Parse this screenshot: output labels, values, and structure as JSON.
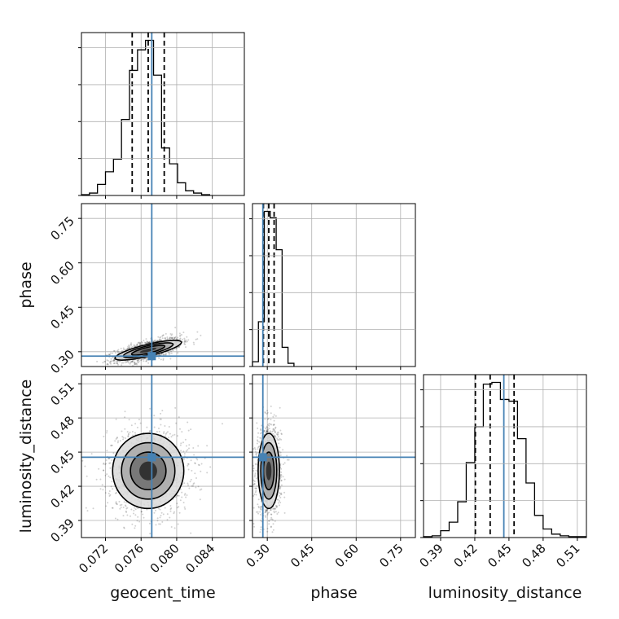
{
  "chart_data": {
    "type": "corner",
    "grid": true,
    "parameters": [
      {
        "name": "geocent_time",
        "label": "geocent_time",
        "truth": 0.0772,
        "range": [
          0.0693,
          0.0876
        ],
        "ticks": [
          0.072,
          0.076,
          0.08,
          0.084
        ],
        "tick_labels": [
          "0.072",
          "0.076",
          "0.080",
          "0.084"
        ],
        "quantiles": [
          0.075,
          0.0768,
          0.0786
        ]
      },
      {
        "name": "phase",
        "label": "phase",
        "truth": 0.285,
        "range": [
          0.25,
          0.8
        ],
        "ticks": [
          0.3,
          0.45,
          0.6,
          0.75
        ],
        "tick_labels": [
          "0.30",
          "0.45",
          "0.60",
          "0.75"
        ],
        "quantiles": [
          0.287,
          0.305,
          0.323
        ]
      },
      {
        "name": "luminosity_distance",
        "label": "luminosity_distance",
        "truth": 0.4455,
        "range": [
          0.375,
          0.518
        ],
        "ticks": [
          0.39,
          0.42,
          0.45,
          0.48,
          0.51
        ],
        "tick_labels": [
          "0.39",
          "0.42",
          "0.45",
          "0.48",
          "0.51"
        ],
        "quantiles": [
          0.4205,
          0.4335,
          0.4545
        ]
      }
    ],
    "histograms": [
      {
        "param": "geocent_time",
        "bin_edges": [
          0.0693,
          0.0702,
          0.0711,
          0.072,
          0.0729,
          0.0738,
          0.0747,
          0.0756,
          0.0765,
          0.0774,
          0.0783,
          0.0792,
          0.0801,
          0.081,
          0.0819,
          0.0828,
          0.0837
        ],
        "counts": [
          0.5,
          1.5,
          7,
          15,
          23,
          48,
          79,
          92,
          98,
          76,
          30,
          20,
          8,
          3,
          1.5,
          0.5
        ]
      },
      {
        "param": "phase",
        "bin_edges": [
          0.25,
          0.27,
          0.29,
          0.31,
          0.33,
          0.35,
          0.37,
          0.39
        ],
        "counts": [
          3,
          28,
          97,
          93,
          73,
          12,
          2
        ]
      },
      {
        "param": "luminosity_distance",
        "bin_edges": [
          0.375,
          0.3825,
          0.39,
          0.3975,
          0.405,
          0.4125,
          0.42,
          0.4275,
          0.435,
          0.4425,
          0.45,
          0.4575,
          0.465,
          0.4725,
          0.48,
          0.4875,
          0.495,
          0.5025,
          0.51,
          0.5175
        ],
        "counts": [
          0.5,
          1,
          4,
          9,
          21,
          44,
          65,
          90,
          91,
          81,
          80,
          58,
          32,
          13,
          5,
          2,
          1,
          0.5,
          0.5
        ]
      }
    ],
    "scatter_panels": [
      {
        "x": "geocent_time",
        "y": "phase",
        "center": [
          0.0768,
          0.305
        ],
        "spread": [
          0.0016,
          0.018
        ],
        "corr": 0.65
      },
      {
        "x": "geocent_time",
        "y": "luminosity_distance",
        "center": [
          0.0768,
          0.4335
        ],
        "spread": [
          0.002,
          0.0165
        ],
        "corr": 0.0
      },
      {
        "x": "phase",
        "y": "luminosity_distance",
        "center": [
          0.305,
          0.4335
        ],
        "spread": [
          0.018,
          0.0165
        ],
        "corr": 0.05
      }
    ],
    "colors": {
      "truth": "#4682b4",
      "hist": "#000000",
      "grid": "#b0b0b0",
      "scatter": "#000000"
    }
  }
}
